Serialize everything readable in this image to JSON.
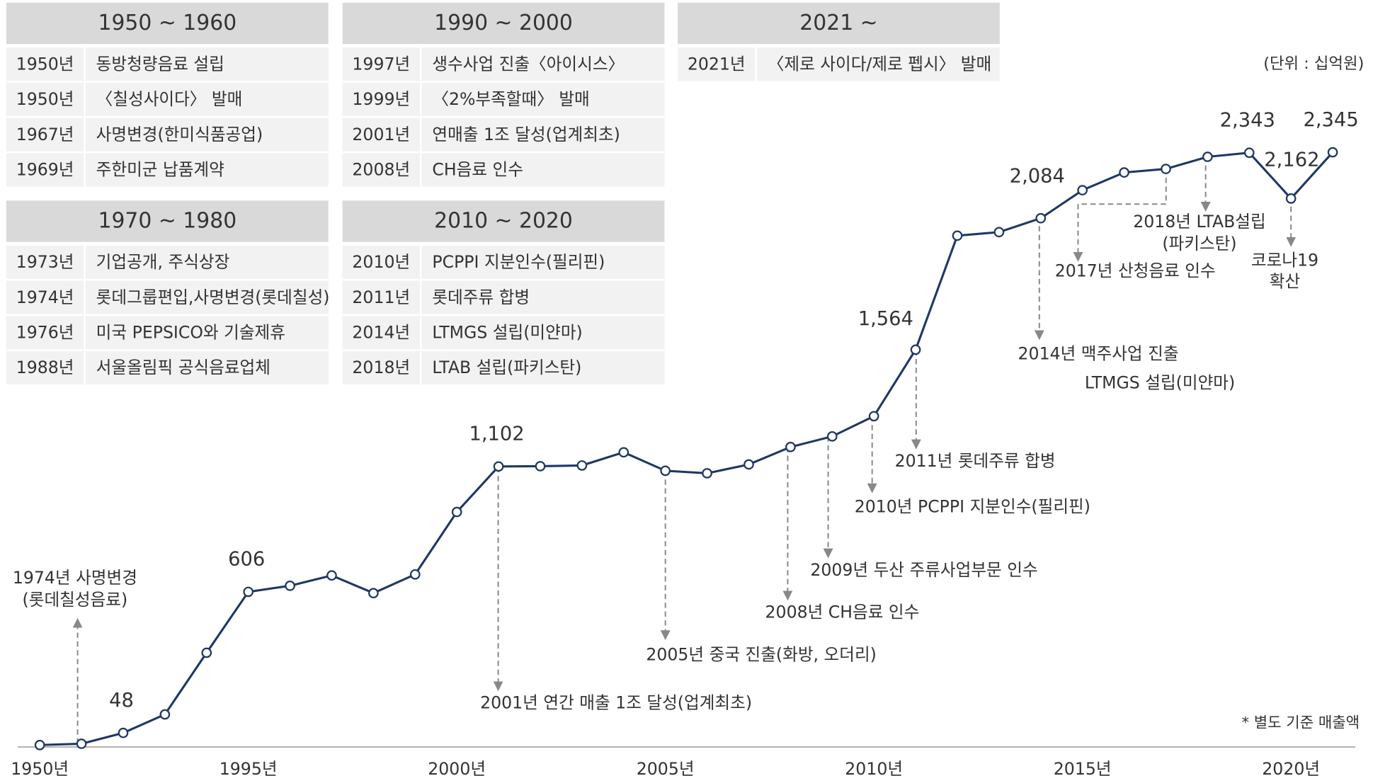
{
  "chart_data": {
    "type": "line",
    "unit_note": "(단위 : 십억원)",
    "footnote": "* 별도 기준 매출액",
    "color": "#1f3864",
    "categories": [
      "1950년",
      null,
      null,
      null,
      null,
      "1995년",
      null,
      null,
      null,
      null,
      "2000년",
      null,
      null,
      null,
      null,
      "2005년",
      null,
      null,
      null,
      null,
      "2010년",
      null,
      null,
      null,
      null,
      "2015년",
      null,
      null,
      null,
      null,
      "2020년",
      null
    ],
    "values": [
      0,
      5,
      48,
      121,
      365,
      606,
      630,
      671,
      601,
      675,
      922,
      1102,
      1103,
      1106,
      1158,
      1085,
      1075,
      1110,
      1179,
      1221,
      1301,
      1564,
      2015,
      2029,
      2084,
      2195,
      2265,
      2279,
      2327,
      2343,
      2162,
      2345
    ],
    "value_labels": [
      null,
      null,
      "48",
      null,
      null,
      "606",
      null,
      null,
      null,
      null,
      null,
      "1,102",
      null,
      null,
      null,
      null,
      null,
      null,
      null,
      null,
      null,
      "1,564",
      null,
      null,
      "2,084",
      null,
      null,
      null,
      null,
      "2,343",
      "2,162",
      "2,345"
    ],
    "ylim": [
      0,
      2900
    ],
    "annotations": [
      {
        "lines": [
          "1974년 사명변경",
          "(롯데칠성음료)"
        ]
      },
      {
        "lines": [
          "2001년 연간 매출 1조 달성(업계최초)"
        ]
      },
      {
        "lines": [
          "2005년 중국 진출(화방, 오더리)"
        ]
      },
      {
        "lines": [
          "2008년 CH음료 인수"
        ]
      },
      {
        "lines": [
          "2009년 두산 주류사업부문 인수"
        ]
      },
      {
        "lines": [
          "2010년 PCPPI 지분인수(필리핀)"
        ]
      },
      {
        "lines": [
          "2011년 롯데주류 합병"
        ]
      },
      {
        "lines": [
          "2014년 맥주사업 진출",
          "LTMGS 설립(미얀마)"
        ]
      },
      {
        "lines": [
          "2017년 산청음료 인수"
        ]
      },
      {
        "lines": [
          "2018년 LTAB설립",
          "(파키스탄)"
        ]
      },
      {
        "lines": [
          "코로나19",
          "확산"
        ]
      }
    ]
  },
  "tables": [
    {
      "title": "1950 ~ 1960",
      "rows": [
        [
          "1950년",
          "동방청량음료 설립"
        ],
        [
          "1950년",
          "〈칠성사이다〉 발매"
        ],
        [
          "1967년",
          "사명변경(한미식품공업)"
        ],
        [
          "1969년",
          "주한미군 납품계약"
        ]
      ]
    },
    {
      "title": "1970 ~ 1980",
      "rows": [
        [
          "1973년",
          "기업공개, 주식상장"
        ],
        [
          "1974년",
          "롯데그룹편입,사명변경(롯데칠성)"
        ],
        [
          "1976년",
          "미국 PEPSICO와 기술제휴"
        ],
        [
          "1988년",
          "서울올림픽 공식음료업체"
        ]
      ]
    },
    {
      "title": "1990 ~ 2000",
      "rows": [
        [
          "1997년",
          "생수사업 진출〈아이시스〉"
        ],
        [
          "1999년",
          "〈2%부족할때〉 발매"
        ],
        [
          "2001년",
          "연매출 1조 달성(업계최초)"
        ],
        [
          "2008년",
          "CH음료 인수"
        ]
      ]
    },
    {
      "title": "2010 ~ 2020",
      "rows": [
        [
          "2010년",
          "PCPPI 지분인수(필리핀)"
        ],
        [
          "2011년",
          "롯데주류 합병"
        ],
        [
          "2014년",
          "LTMGS 설립(미얀마)"
        ],
        [
          "2018년",
          "LTAB 설립(파키스탄)"
        ]
      ]
    },
    {
      "title": "2021 ~",
      "rows": [
        [
          "2021년",
          "〈제로 사이다/제로 펩시〉 발매"
        ]
      ]
    }
  ]
}
